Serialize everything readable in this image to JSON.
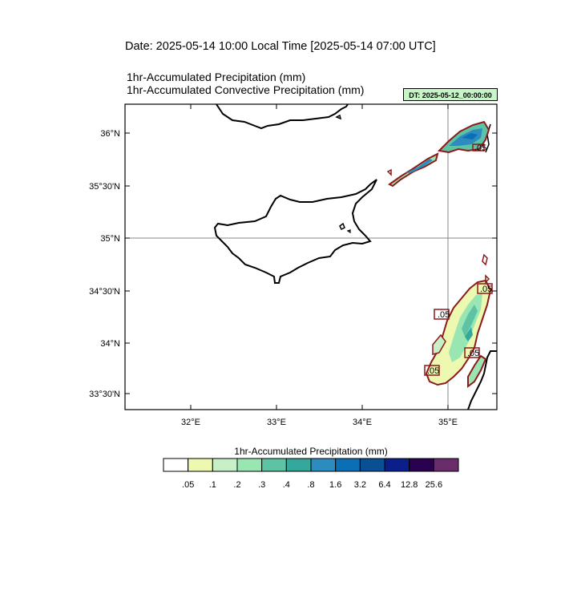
{
  "header": {
    "date_line": "Date: 2025-05-14  10:00 Local Time [2025-05-14  07:00 UTC]",
    "subtitle_1": "1hr-Accumulated Precipitation   (mm)",
    "subtitle_2": "1hr-Accumulated Convective Precipitation   (mm)",
    "dt_badge": "DT: 2025-05-12_00:00:00"
  },
  "map": {
    "lat_ticks": [
      "36°N",
      "35°30'N",
      "35°N",
      "34°30'N",
      "34°N",
      "33°30'N"
    ],
    "lon_ticks": [
      "32°E",
      "33°E",
      "34°E",
      "35°E"
    ],
    "grid_lines": [
      "35°N",
      "35°E"
    ],
    "contour_labels": [
      ".05",
      ".05",
      ".05",
      ".05",
      ".05"
    ],
    "colors": {
      "land_outline": "#000000",
      "convective_contour": "#8b1a1a",
      "grid": "#888888"
    }
  },
  "colorbar": {
    "title": "1hr-Accumulated Precipitation  (mm)",
    "labels": [
      ".05",
      ".1",
      ".2",
      ".3",
      ".4",
      ".8",
      "1.6",
      "3.2",
      "6.4",
      "12.8",
      "25.6"
    ],
    "colors": [
      "#ffffff",
      "#edf8b1",
      "#c7f0c8",
      "#99e6b3",
      "#5ec3a5",
      "#34a89a",
      "#2c8cbf",
      "#0a6fb4",
      "#084f94",
      "#0b1f8a",
      "#2a0050",
      "#6a2c6a"
    ]
  }
}
